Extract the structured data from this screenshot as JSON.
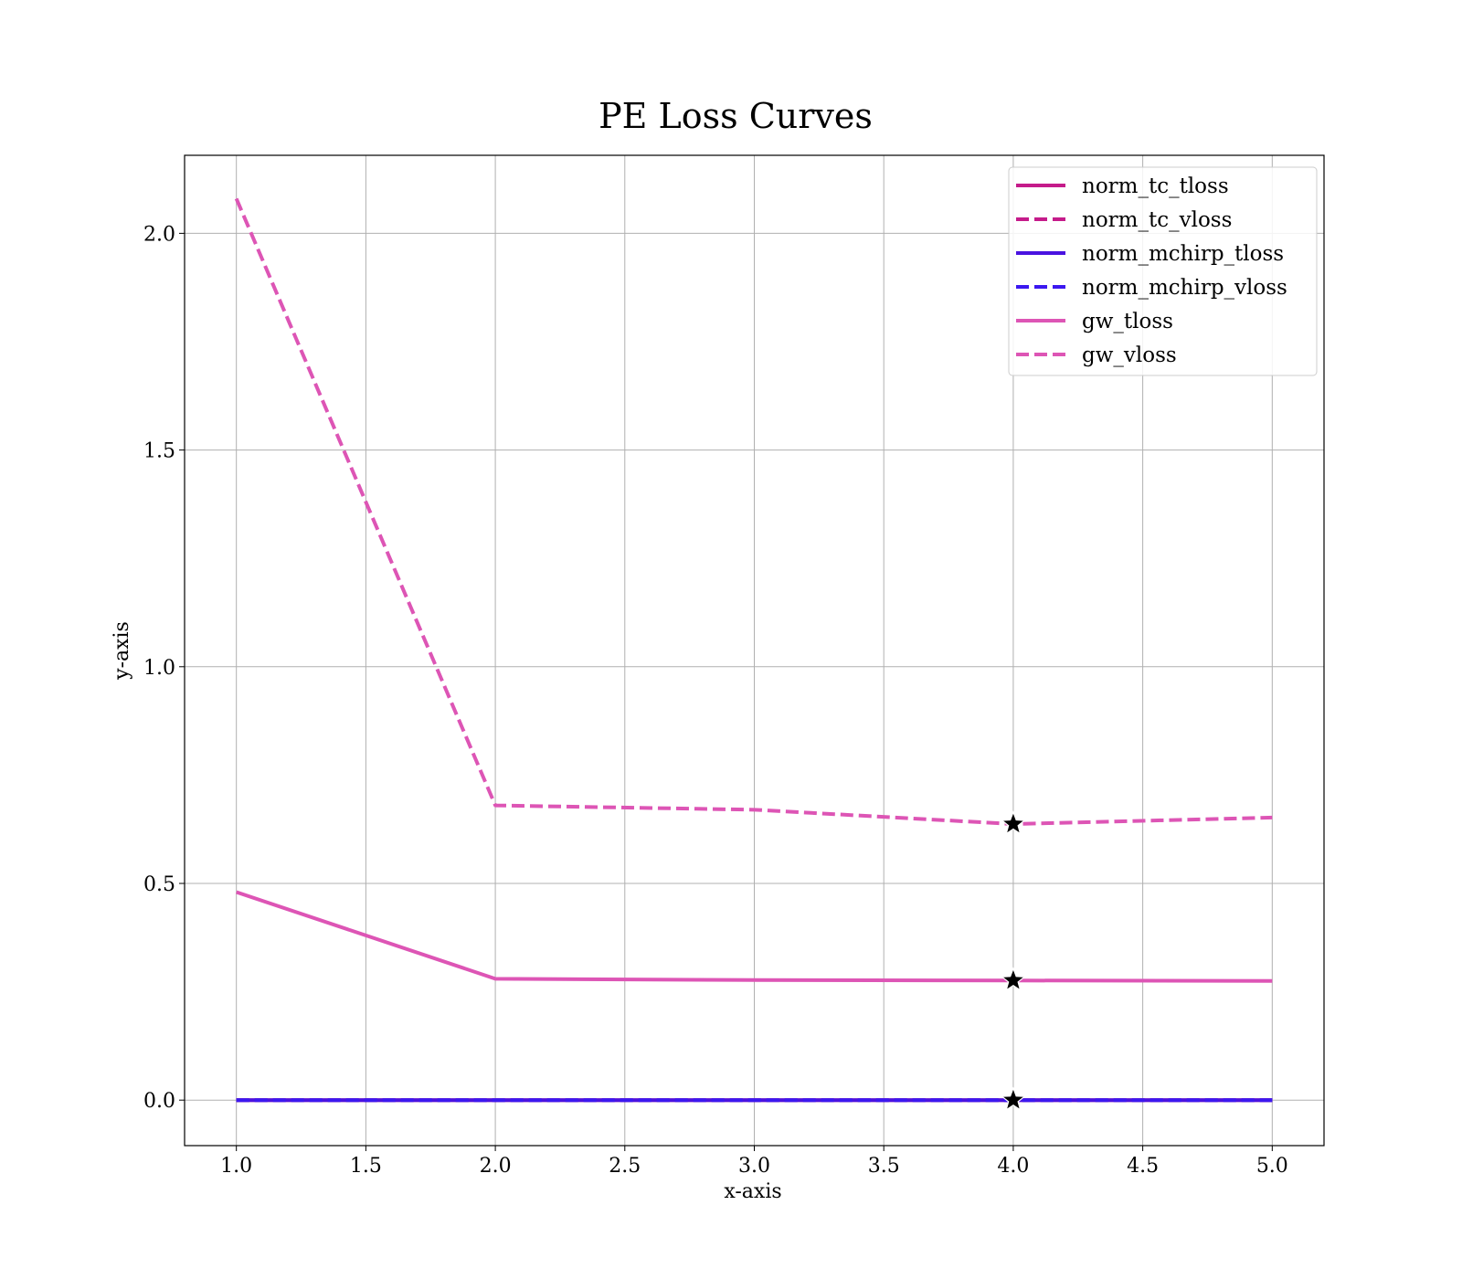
{
  "chart_data": {
    "type": "line",
    "title": "PE Loss Curves",
    "xlabel": "x-axis",
    "ylabel": "y-axis",
    "x": [
      1,
      2,
      3,
      4,
      5
    ],
    "xlim": [
      0.8,
      5.2
    ],
    "ylim": [
      -0.105,
      2.18
    ],
    "xticks": [
      "1.0",
      "1.5",
      "2.0",
      "2.5",
      "3.0",
      "3.5",
      "4.0",
      "4.5",
      "5.0"
    ],
    "yticks": [
      "0.0",
      "0.5",
      "1.0",
      "1.5",
      "2.0"
    ],
    "grid": true,
    "legend_position": "top-right",
    "series": [
      {
        "name": "norm_tc_tloss",
        "color": "#c51b8a",
        "dash": false,
        "values": [
          0.0,
          0.0,
          0.0,
          0.0,
          0.0
        ]
      },
      {
        "name": "norm_tc_vloss",
        "color": "#c51b8a",
        "dash": true,
        "values": [
          0.0,
          0.0,
          0.0,
          0.0,
          0.0
        ]
      },
      {
        "name": "norm_mchirp_tloss",
        "color": "#4a12e0",
        "dash": false,
        "values": [
          0.0,
          0.0,
          0.0,
          0.0,
          0.0
        ]
      },
      {
        "name": "norm_mchirp_vloss",
        "color": "#3b18f0",
        "dash": true,
        "values": [
          0.0,
          0.0,
          0.0,
          0.0,
          0.0
        ]
      },
      {
        "name": "gw_tloss",
        "color": "#dd55b5",
        "dash": false,
        "values": [
          0.48,
          0.28,
          0.277,
          0.276,
          0.275
        ]
      },
      {
        "name": "gw_vloss",
        "color": "#dd55b5",
        "dash": true,
        "values": [
          2.08,
          0.68,
          0.67,
          0.637,
          0.652
        ]
      }
    ],
    "markers": [
      {
        "x": 4,
        "y": 0.637,
        "symbol": "star"
      },
      {
        "x": 4,
        "y": 0.276,
        "symbol": "star"
      },
      {
        "x": 4,
        "y": 0.0,
        "symbol": "star"
      }
    ]
  }
}
